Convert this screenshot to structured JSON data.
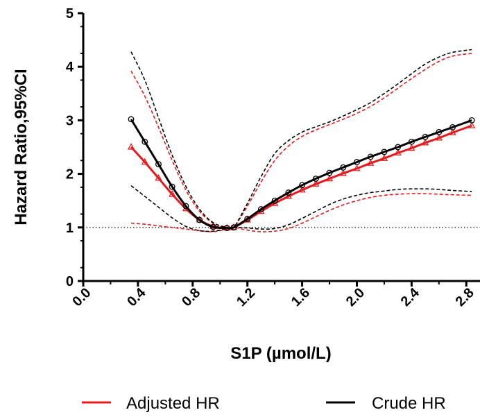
{
  "chart_data": {
    "type": "line",
    "xlabel": "S1P (µmol/L)",
    "ylabel": "Hazard Ratio,95%CI",
    "xlim": [
      0.0,
      2.9
    ],
    "ylim": [
      0,
      5
    ],
    "x_ticks": [
      "0.0",
      "0.4",
      "0.8",
      "1.2",
      "1.6",
      "2.0",
      "2.4",
      "2.8"
    ],
    "y_ticks": [
      "0",
      "1",
      "2",
      "3",
      "4",
      "5"
    ],
    "reference_line": 1,
    "legend_position": "bottom",
    "series": [
      {
        "name": "Adjusted HR",
        "color": "#e8191c",
        "marker": "triangle",
        "x": [
          0.35,
          0.45,
          0.55,
          0.65,
          0.75,
          0.85,
          0.95,
          1.05,
          1.1,
          1.2,
          1.3,
          1.4,
          1.5,
          1.6,
          1.7,
          1.8,
          1.9,
          2.0,
          2.1,
          2.2,
          2.3,
          2.4,
          2.5,
          2.6,
          2.7,
          2.84
        ],
        "y": [
          2.5,
          2.22,
          1.92,
          1.62,
          1.35,
          1.14,
          1.02,
          0.99,
          1.0,
          1.14,
          1.3,
          1.45,
          1.58,
          1.7,
          1.81,
          1.91,
          2.01,
          2.1,
          2.2,
          2.29,
          2.39,
          2.48,
          2.58,
          2.67,
          2.77,
          2.9
        ],
        "ci_lower": [
          1.08,
          1.06,
          1.03,
          1.0,
          0.97,
          0.94,
          0.92,
          0.97,
          1.0,
          0.95,
          0.92,
          0.93,
          0.98,
          1.08,
          1.2,
          1.32,
          1.42,
          1.5,
          1.56,
          1.6,
          1.62,
          1.63,
          1.63,
          1.62,
          1.61,
          1.6
        ],
        "ci_upper": [
          3.92,
          3.45,
          2.87,
          2.25,
          1.7,
          1.3,
          1.08,
          1.0,
          1.0,
          1.4,
          1.85,
          2.25,
          2.52,
          2.7,
          2.82,
          2.92,
          3.02,
          3.13,
          3.26,
          3.42,
          3.6,
          3.78,
          3.95,
          4.1,
          4.2,
          4.25
        ]
      },
      {
        "name": "Crude HR",
        "color": "#000000",
        "marker": "circle",
        "x": [
          0.35,
          0.45,
          0.55,
          0.65,
          0.75,
          0.85,
          0.95,
          1.05,
          1.1,
          1.2,
          1.3,
          1.4,
          1.5,
          1.6,
          1.7,
          1.8,
          1.9,
          2.0,
          2.1,
          2.2,
          2.3,
          2.4,
          2.5,
          2.6,
          2.7,
          2.84
        ],
        "y": [
          3.02,
          2.6,
          2.18,
          1.76,
          1.4,
          1.14,
          1.01,
          0.99,
          1.0,
          1.16,
          1.34,
          1.5,
          1.65,
          1.79,
          1.91,
          2.02,
          2.12,
          2.22,
          2.32,
          2.41,
          2.5,
          2.6,
          2.69,
          2.78,
          2.87,
          3.0
        ],
        "ci_lower": [
          1.78,
          1.58,
          1.38,
          1.18,
          1.02,
          0.94,
          0.93,
          0.98,
          1.0,
          0.99,
          0.97,
          0.98,
          1.05,
          1.17,
          1.3,
          1.43,
          1.53,
          1.6,
          1.65,
          1.68,
          1.71,
          1.72,
          1.72,
          1.71,
          1.69,
          1.67
        ],
        "ci_upper": [
          4.28,
          3.75,
          3.05,
          2.35,
          1.77,
          1.34,
          1.09,
          1.0,
          1.0,
          1.45,
          1.95,
          2.38,
          2.62,
          2.78,
          2.88,
          2.97,
          3.08,
          3.2,
          3.33,
          3.5,
          3.68,
          3.87,
          4.05,
          4.18,
          4.27,
          4.32
        ]
      }
    ]
  }
}
